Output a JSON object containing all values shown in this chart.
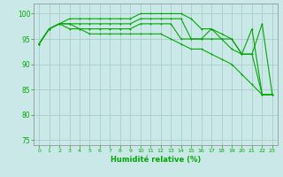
{
  "background_color": "#cbe8e8",
  "grid_color": "#aacccc",
  "line_color": "#00aa00",
  "xlabel": "Humidité relative (%)",
  "xlabel_color": "#00aa00",
  "ylim": [
    74,
    102
  ],
  "xlim": [
    -0.5,
    23.5
  ],
  "yticks": [
    75,
    80,
    85,
    90,
    95,
    100
  ],
  "xtick_labels": [
    "0",
    "1",
    "2",
    "3",
    "4",
    "5",
    "6",
    "7",
    "8",
    "9",
    "10",
    "11",
    "12",
    "13",
    "14",
    "15",
    "16",
    "17",
    "18",
    "19",
    "20",
    "21",
    "22",
    "23"
  ],
  "series": [
    [
      94,
      97,
      98,
      99,
      99,
      99,
      99,
      99,
      99,
      99,
      100,
      100,
      100,
      100,
      100,
      99,
      97,
      97,
      96,
      95,
      92,
      92,
      98,
      84
    ],
    [
      94,
      97,
      98,
      98,
      98,
      98,
      98,
      98,
      98,
      98,
      99,
      99,
      99,
      99,
      99,
      95,
      95,
      97,
      95,
      95,
      92,
      97,
      84,
      84
    ],
    [
      94,
      97,
      98,
      98,
      97,
      97,
      97,
      97,
      97,
      97,
      98,
      98,
      98,
      98,
      95,
      95,
      95,
      95,
      95,
      93,
      92,
      92,
      84,
      84
    ],
    [
      94,
      97,
      98,
      97,
      97,
      96,
      96,
      96,
      96,
      96,
      96,
      96,
      96,
      95,
      94,
      93,
      93,
      92,
      91,
      90,
      88,
      86,
      84,
      84
    ]
  ]
}
